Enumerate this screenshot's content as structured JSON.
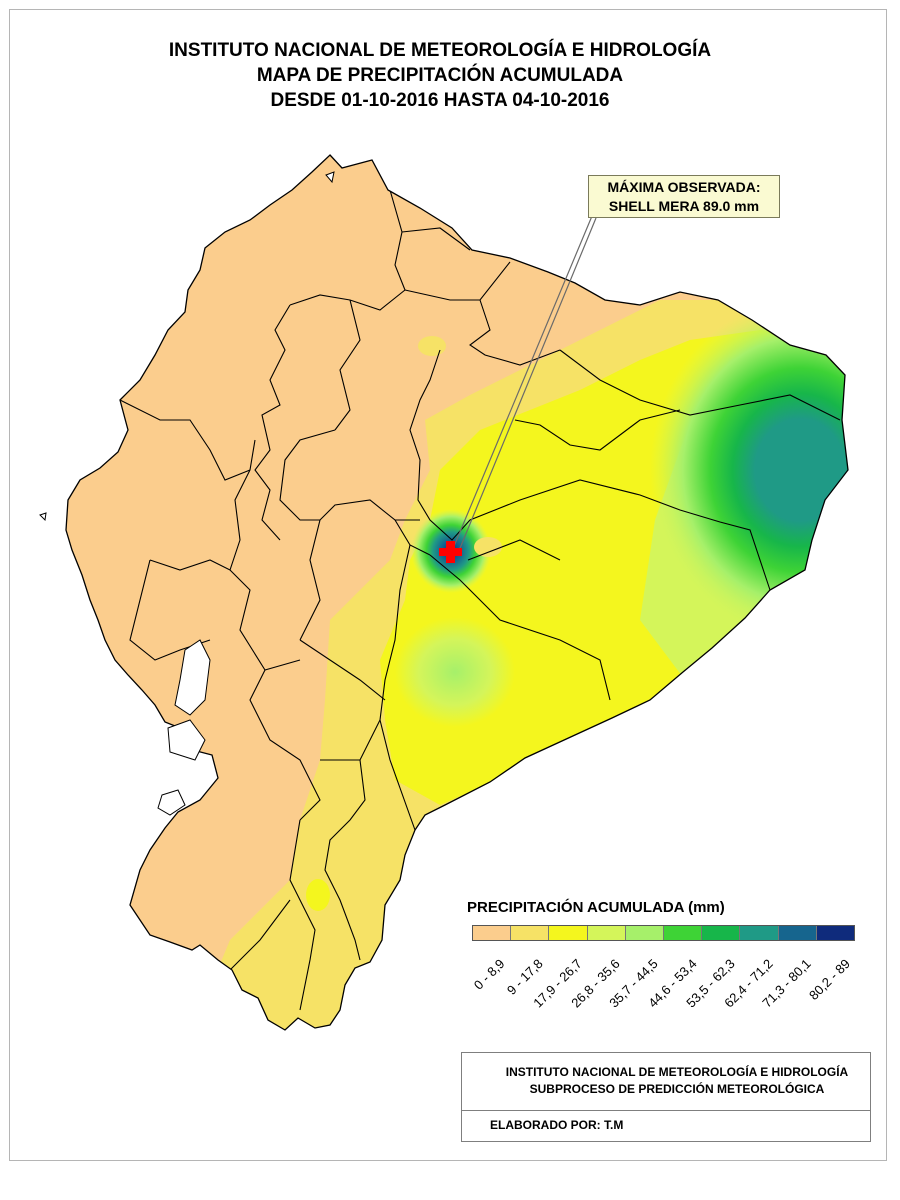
{
  "title": {
    "line1": "INSTITUTO NACIONAL DE METEOROLOGÍA E HIDROLOGÍA",
    "line2": "MAPA DE PRECIPITACIÓN ACUMULADA",
    "line3": "DESDE 01-10-2016 HASTA 04-10-2016"
  },
  "callout": {
    "line1": "MÁXIMA OBSERVADA:",
    "line2": "SHELL MERA 89.0 mm"
  },
  "max_marker": {
    "icon": "red-cross-icon",
    "color": "#ff0000"
  },
  "legend": {
    "title": "PRECIPITACIÓN ACUMULADA (mm)",
    "classes": [
      {
        "label": "0 - 8,9",
        "color": "#fbcd8d"
      },
      {
        "label": "9 - 17,8",
        "color": "#f6e266"
      },
      {
        "label": "17,9 - 26,7",
        "color": "#f4f61e"
      },
      {
        "label": "26,8 - 35,6",
        "color": "#d4f55a"
      },
      {
        "label": "35,7 - 44,5",
        "color": "#a6f06a"
      },
      {
        "label": "44,6 - 53,4",
        "color": "#3ed336"
      },
      {
        "label": "53,5 - 62,3",
        "color": "#17b64a"
      },
      {
        "label": "62,4 - 71,2",
        "color": "#1f9a86"
      },
      {
        "label": "71,3 - 80,1",
        "color": "#16658e"
      },
      {
        "label": "80,2 - 89",
        "color": "#0f2b7c"
      }
    ]
  },
  "info": {
    "line1": "INSTITUTO NACIONAL DE METEOROLOGÍA E HIDROLOGÍA",
    "line2": "SUBPROCESO DE PREDICCIÓN METEOROLÓGICA",
    "author": "ELABORADO POR: T.M"
  }
}
